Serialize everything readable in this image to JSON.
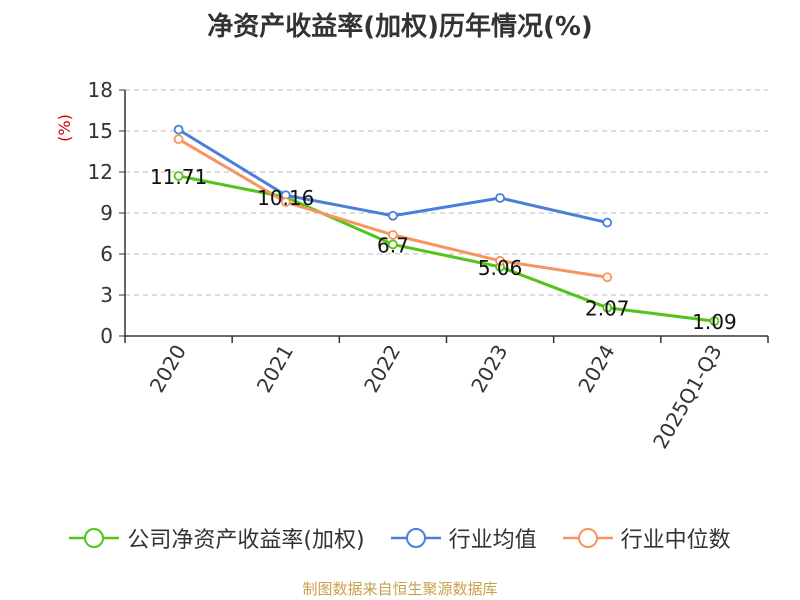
{
  "chart_data": {
    "type": "line",
    "title": "净资产收益率(加权)历年情况(%)",
    "ylabel": "(%)",
    "xlabel": "",
    "categories": [
      "2020",
      "2021",
      "2022",
      "2023",
      "2024",
      "2025Q1-Q3"
    ],
    "ylim": [
      0,
      18
    ],
    "yticks": [
      0,
      3,
      6,
      9,
      12,
      15,
      18
    ],
    "grid": true,
    "legend_position": "bottom",
    "series": [
      {
        "name": "公司净资产收益率(加权)",
        "color": "#52c41a",
        "values": [
          11.71,
          10.16,
          6.7,
          5.06,
          2.07,
          1.09
        ],
        "labels": [
          "11.71",
          "10.16",
          "6.7",
          "5.06",
          "2.07",
          "1.09"
        ]
      },
      {
        "name": "行业均值",
        "color": "#4a7fd9",
        "values": [
          15.1,
          10.3,
          8.8,
          10.1,
          8.3,
          null
        ]
      },
      {
        "name": "行业中位数",
        "color": "#f79560",
        "values": [
          14.4,
          9.8,
          7.4,
          5.5,
          4.3,
          null
        ]
      }
    ]
  },
  "source": "制图数据来自恒生聚源数据库",
  "colors": {
    "axis": "#333333",
    "grid": "#bbbbbb",
    "ylabel": "#cc0000",
    "source": "#c7a24a"
  }
}
